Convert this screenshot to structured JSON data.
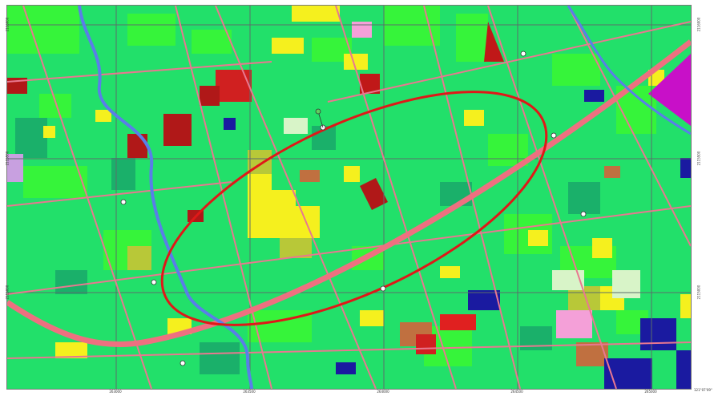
{
  "map": {
    "colors": {
      "base_green": "#22e06a",
      "light_green": "#36f43a",
      "dark_green": "#1ab06a",
      "yellow": "#f5f01e",
      "olive": "#b8c838",
      "dark_red": "#b01818",
      "red": "#e02020",
      "pink_road": "#e87890",
      "river_blue": "#5a7ee8",
      "grid_line": "#5a6e6a",
      "magenta": "#c810c8",
      "navy": "#1a1aa0",
      "brown": "#c07040",
      "light_pink": "#f4a0d8",
      "pale_green": "#d8f4c8",
      "ellipse": "#e01818"
    },
    "grid_ticks": {
      "bottom": [
        "263000",
        "263500",
        "264000",
        "264500",
        "265000"
      ],
      "left": [
        "2116000",
        "2115500",
        "2115000"
      ],
      "right": [
        "2116000",
        "2115500",
        "2115000"
      ]
    },
    "corner_label": "121°07'09\""
  }
}
